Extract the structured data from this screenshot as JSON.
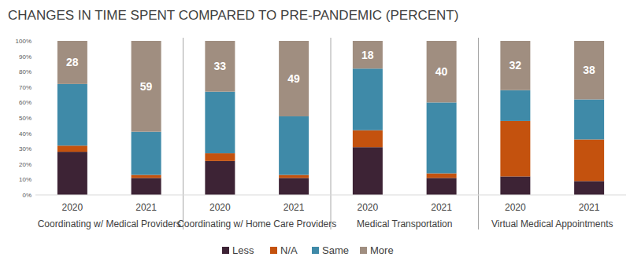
{
  "chart_data": {
    "type": "bar",
    "stacked": true,
    "title": "CHANGES IN TIME SPENT COMPARED TO PRE-PANDEMIC (PERCENT)",
    "categories": [
      "2020",
      "2021",
      "2020",
      "2021",
      "2020",
      "2021",
      "2020",
      "2021"
    ],
    "category_groups": [
      "Coordinating w/ Medical Providers",
      "Coordinating w/ Home Care Providers",
      "Medical Transportation",
      "Virtual Medical Appointments"
    ],
    "series": [
      {
        "name": "Less",
        "color": "#3d2335",
        "values": [
          28,
          11,
          22,
          11,
          31,
          11,
          12,
          9
        ]
      },
      {
        "name": "N/A",
        "color": "#c4520e",
        "values": [
          4,
          2,
          5,
          2,
          11,
          3,
          36,
          27
        ]
      },
      {
        "name": "Same",
        "color": "#3f8aa8",
        "values": [
          40,
          28,
          40,
          38,
          40,
          46,
          20,
          26
        ]
      },
      {
        "name": "More",
        "color": "#a08e80",
        "values": [
          28,
          59,
          33,
          49,
          18,
          40,
          32,
          38
        ],
        "data_labels": true
      }
    ],
    "ylim": [
      0,
      100
    ],
    "yticks": [
      {
        "value": 0,
        "label": "0%"
      },
      {
        "value": 10,
        "label": "10%"
      },
      {
        "value": 20,
        "label": "20%"
      },
      {
        "value": 30,
        "label": "30%"
      },
      {
        "value": 40,
        "label": "40%"
      },
      {
        "value": 50,
        "label": "50%"
      },
      {
        "value": 60,
        "label": "60%"
      },
      {
        "value": 70,
        "label": "70%"
      },
      {
        "value": 80,
        "label": "80%"
      },
      {
        "value": 90,
        "label": "90%"
      },
      {
        "value": 100,
        "label": "100%"
      }
    ],
    "grid": false,
    "legend": "bottom"
  }
}
